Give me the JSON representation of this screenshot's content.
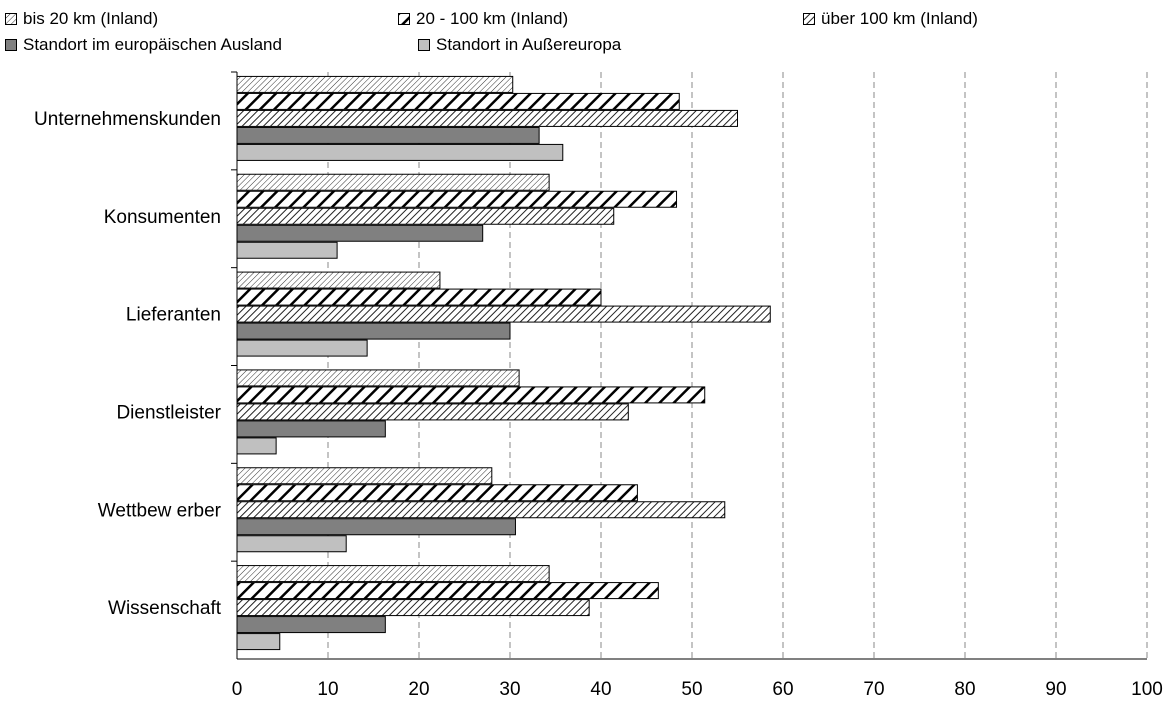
{
  "chart_data": {
    "type": "bar",
    "orientation": "horizontal",
    "categories": [
      "Unternehmenskunden",
      "Konsumenten",
      "Lieferanten",
      "Dienstleister",
      "Wettbew erber",
      "Wissenschaft"
    ],
    "series": [
      {
        "name": "bis 20 km (Inland)",
        "values": [
          30.3,
          34.3,
          22.3,
          31.0,
          28.0,
          34.3
        ],
        "pattern": "fine-hatch"
      },
      {
        "name": "20 - 100 km (Inland)",
        "values": [
          48.6,
          48.3,
          40.0,
          51.4,
          44.0,
          46.3
        ],
        "pattern": "bold-hatch"
      },
      {
        "name": "über 100 km (Inland)",
        "values": [
          55.0,
          41.4,
          58.6,
          43.0,
          53.6,
          38.7
        ],
        "pattern": "medium-hatch"
      },
      {
        "name": "Standort im europäischen Ausland",
        "values": [
          33.2,
          27.0,
          30.0,
          16.3,
          30.6,
          16.3
        ],
        "color": "#808080"
      },
      {
        "name": "Standort in Außereuropa",
        "values": [
          35.8,
          11.0,
          14.3,
          4.3,
          12.0,
          4.7
        ],
        "color": "#c0c0c0"
      }
    ],
    "xlim": [
      0,
      100
    ],
    "xticks": [
      "0",
      "10",
      "20",
      "30",
      "40",
      "50",
      "60",
      "70",
      "80",
      "90",
      "100"
    ],
    "grid": "vertical-dashed",
    "legend": "top",
    "title": "",
    "xlabel": "",
    "ylabel": ""
  }
}
